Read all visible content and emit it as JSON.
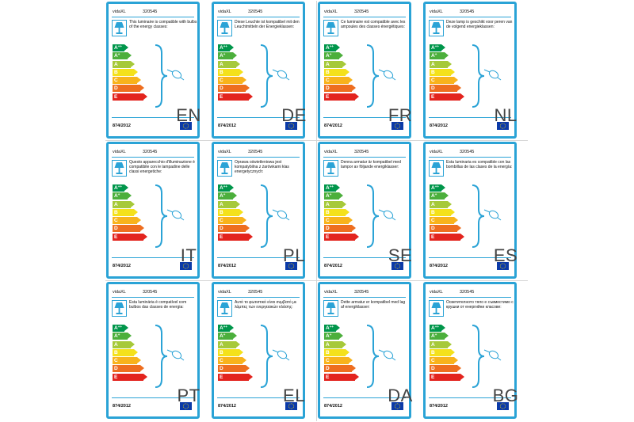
{
  "brand": "vidaXL",
  "article_number": "320545",
  "regulation": "874/2012",
  "energy_classes": [
    {
      "letter": "A",
      "sup": "++",
      "color": "#00964b"
    },
    {
      "letter": "A",
      "sup": "+",
      "color": "#4caf3c"
    },
    {
      "letter": "A",
      "sup": "",
      "color": "#a6c93a"
    },
    {
      "letter": "B",
      "sup": "",
      "color": "#f4e11b"
    },
    {
      "letter": "C",
      "sup": "",
      "color": "#f8b31c"
    },
    {
      "letter": "D",
      "sup": "",
      "color": "#ee6e1f"
    },
    {
      "letter": "E",
      "sup": "",
      "color": "#e3241e"
    }
  ],
  "colors": {
    "label_border": "#2aa3d6",
    "eu_flag": "#0b3aa8",
    "eu_stars": "#ffdd00"
  },
  "icons": [
    "lamp-icon",
    "bulb-icon",
    "eu-flag-icon"
  ],
  "labels": [
    {
      "lang": "EN",
      "text": "This luminaire is compatible with bulbs of the energy classes:"
    },
    {
      "lang": "DE",
      "text": "Diese Leuchte ist kompatibel mit den Leuchtmitteln der Energieklassen:"
    },
    {
      "lang": "FR",
      "text": "Ce luminaire est compatible avec les ampoules des classes énergétiques:"
    },
    {
      "lang": "NL",
      "text": "Deze lamp is geschikt voor peren van de volgend energieklassen:"
    },
    {
      "lang": "IT",
      "text": "Questo apparecchio d'illuminazione è compatibile con le lampadine delle classi energetiche:"
    },
    {
      "lang": "PL",
      "text": "Oprawa oświetleniowa jest kompatybilna z żarówkami klas energetycznych:"
    },
    {
      "lang": "SE",
      "text": "Denna armatur är kompatibel med lampor av följande energiklasser:"
    },
    {
      "lang": "ES",
      "text": "Esta luminaria es compatible con las bombillas de las clases de la energía:"
    },
    {
      "lang": "PT",
      "text": "Esta luminária é compatível com bulbos das classes de energia:"
    },
    {
      "lang": "EL",
      "text": "Αυτό το φωτιστικό είναι συμβατό με λάμπες των ενεργειακών κλάσης:"
    },
    {
      "lang": "DA",
      "text": "Dette armatur er kompatibel med lag af energiklasser:"
    },
    {
      "lang": "BG",
      "text": "Осветителното тяло е съвместимо с крушки от енергийни класове:"
    }
  ]
}
